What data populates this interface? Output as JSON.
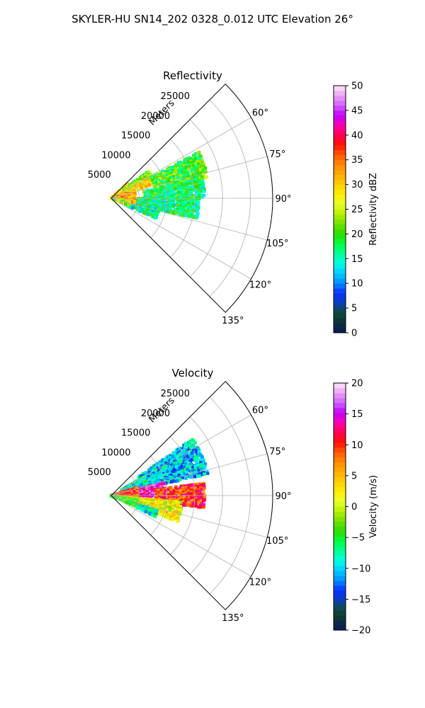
{
  "suptitle": "SKYLER-HU  SN14_202  0328_0.012 UTC Elevation 26°",
  "chart_data": [
    {
      "type": "heatmap",
      "subtype": "polar-radar-sector",
      "title": "Reflectivity",
      "range_label": "Meters",
      "range_ticks": [
        5000,
        10000,
        15000,
        20000,
        25000
      ],
      "range_max": 29000,
      "azimuth_ticks": [
        "60°",
        "75°",
        "90°",
        "105°",
        "120°",
        "135°"
      ],
      "azimuth_range": [
        45,
        135
      ],
      "colorbar": {
        "label": "Reflectivity dBZ",
        "ticks": [
          "0",
          "5",
          "10",
          "15",
          "20",
          "25",
          "30",
          "35",
          "40",
          "45",
          "50"
        ],
        "vmin": 0,
        "vmax": 50
      },
      "regions": [
        {
          "az": [
            48,
            60
          ],
          "r": [
            0,
            4000
          ],
          "value": 30
        },
        {
          "az": [
            54,
            68
          ],
          "r": [
            2500,
            8500
          ],
          "value": 22
        },
        {
          "az": [
            60,
            72
          ],
          "r": [
            2000,
            8000
          ],
          "value": 28
        },
        {
          "az": [
            62,
            78
          ],
          "r": [
            8000,
            18000
          ],
          "value": 20
        },
        {
          "az": [
            78,
            90
          ],
          "r": [
            6000,
            17000
          ],
          "value": 18
        },
        {
          "az": [
            90,
            104
          ],
          "r": [
            2000,
            16000
          ],
          "value": 17
        },
        {
          "az": [
            104,
            115
          ],
          "r": [
            3000,
            9000
          ],
          "value": 16
        },
        {
          "az": [
            72,
            102
          ],
          "r": [
            0,
            4500
          ],
          "value": 32
        },
        {
          "az": [
            100,
            112
          ],
          "r": [
            0,
            3500
          ],
          "value": 25
        }
      ]
    },
    {
      "type": "heatmap",
      "subtype": "polar-radar-sector",
      "title": "Velocity",
      "range_label": "Meters",
      "range_ticks": [
        5000,
        10000,
        15000,
        20000,
        25000
      ],
      "range_max": 29000,
      "azimuth_ticks": [
        "60°",
        "75°",
        "90°",
        "105°",
        "120°",
        "135°"
      ],
      "azimuth_range": [
        45,
        135
      ],
      "colorbar": {
        "label": "Velocity (m/s)",
        "ticks": [
          "−20",
          "−15",
          "−10",
          "−5",
          "0",
          "5",
          "10",
          "15",
          "20"
        ],
        "vmin": -20,
        "vmax": 20
      },
      "regions": [
        {
          "az": [
            55,
            78
          ],
          "r": [
            6000,
            18000
          ],
          "value": -10
        },
        {
          "az": [
            60,
            72
          ],
          "r": [
            2000,
            7000
          ],
          "value": -8
        },
        {
          "az": [
            76,
            92
          ],
          "r": [
            2000,
            10000
          ],
          "value": 15
        },
        {
          "az": [
            82,
            98
          ],
          "r": [
            8000,
            17000
          ],
          "value": 10
        },
        {
          "az": [
            72,
            95
          ],
          "r": [
            0,
            5000
          ],
          "value": 10
        },
        {
          "az": [
            95,
            112
          ],
          "r": [
            2000,
            13000
          ],
          "value": 2
        },
        {
          "az": [
            100,
            114
          ],
          "r": [
            0,
            5000
          ],
          "value": -3
        },
        {
          "az": [
            108,
            116
          ],
          "r": [
            5000,
            9000
          ],
          "value": -8
        }
      ]
    }
  ]
}
